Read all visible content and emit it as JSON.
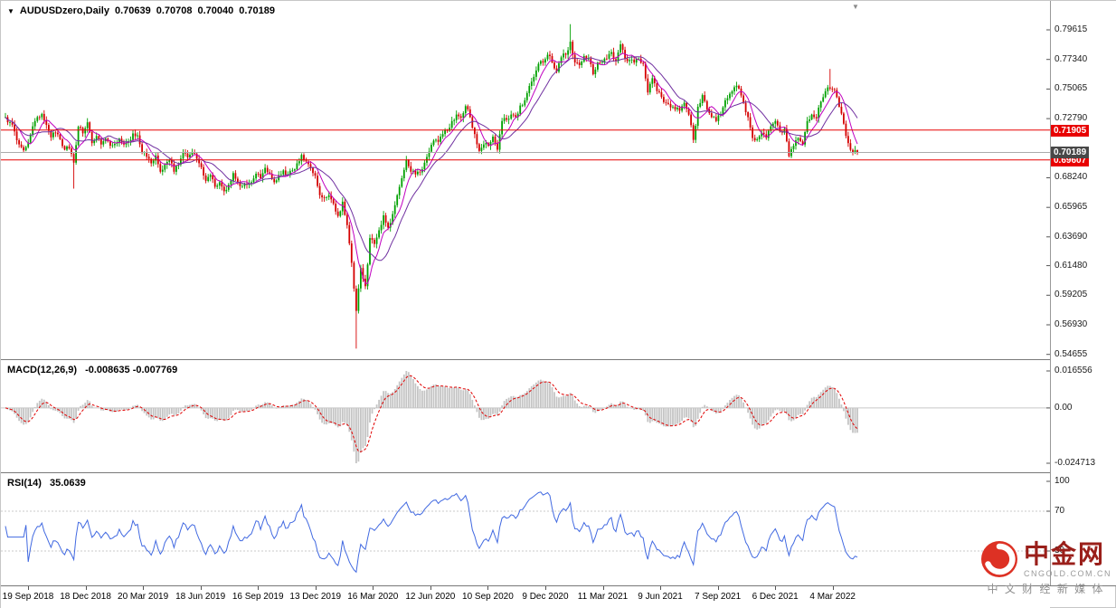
{
  "header": {
    "dropdown_icon": "▼",
    "symbol_title": "AUDUSDzero,Daily",
    "open": "0.70639",
    "high": "0.70708",
    "low": "0.70040",
    "close": "0.70189"
  },
  "colors": {
    "bull": "#00A000",
    "bear": "#D40000",
    "ma_fast": "#C000C0",
    "ma_slow": "#7030A0",
    "hline": "#E80000",
    "badge_red": "#E80000",
    "badge_dark": "#484848",
    "current_price_line": "#ABABAB",
    "macd_histogram": "#C4C4C4",
    "macd_signal": "#E00000",
    "rsi_line": "#4169E1",
    "rsi_level_line": "#C8C8C8",
    "brand_red": "#DD3124",
    "brand_text": "#9A1F1A"
  },
  "main_chart": {
    "end_marker_icon": "▼"
  },
  "chart_data": {
    "type": "candlestick",
    "symbol": "AUDUSDzero",
    "timeframe": "Daily",
    "y_axis": {
      "min": 0.54655,
      "max": 0.79615,
      "labels": [
        "0.79615",
        "0.77340",
        "0.75065",
        "0.72790",
        "0.68240",
        "0.65965",
        "0.63690",
        "0.61480",
        "0.59205",
        "0.56930",
        "0.54655"
      ]
    },
    "x_axis_dates": [
      "19 Sep 2018",
      "18 Dec 2018",
      "20 Mar 2019",
      "18 Jun 2019",
      "16 Sep 2019",
      "13 Dec 2019",
      "16 Mar 2020",
      "12 Jun 2020",
      "10 Sep 2020",
      "9 Dec 2020",
      "11 Mar 2021",
      "9 Jun 2021",
      "7 Sep 2021",
      "6 Dec 2021",
      "4 Mar 2022"
    ],
    "weekly_closes": [
      0.729,
      0.725,
      0.718,
      0.708,
      0.7035,
      0.7095,
      0.722,
      0.729,
      0.7315,
      0.723,
      0.7135,
      0.717,
      0.712,
      0.704,
      0.705,
      0.694,
      0.7215,
      0.7165,
      0.725,
      0.709,
      0.7145,
      0.708,
      0.7125,
      0.707,
      0.7085,
      0.7125,
      0.708,
      0.7105,
      0.7165,
      0.715,
      0.702,
      0.6985,
      0.6935,
      0.6995,
      0.687,
      0.6925,
      0.696,
      0.687,
      0.6925,
      0.702,
      0.698,
      0.7015,
      0.697,
      0.6905,
      0.68,
      0.6845,
      0.6755,
      0.679,
      0.672,
      0.677,
      0.686,
      0.679,
      0.676,
      0.677,
      0.679,
      0.6855,
      0.682,
      0.69,
      0.6855,
      0.679,
      0.6845,
      0.688,
      0.685,
      0.688,
      0.6935,
      0.7,
      0.695,
      0.69,
      0.684,
      0.669,
      0.667,
      0.669,
      0.6625,
      0.653,
      0.664,
      0.646,
      0.617,
      0.58,
      0.613,
      0.599,
      0.636,
      0.6315,
      0.642,
      0.6535,
      0.644,
      0.6545,
      0.669,
      0.682,
      0.696,
      0.687,
      0.685,
      0.6865,
      0.694,
      0.7025,
      0.711,
      0.71,
      0.716,
      0.7185,
      0.726,
      0.731,
      0.7285,
      0.7375,
      0.729,
      0.716,
      0.703,
      0.708,
      0.707,
      0.714,
      0.704,
      0.726,
      0.727,
      0.731,
      0.729,
      0.738,
      0.742,
      0.753,
      0.76,
      0.77,
      0.771,
      0.777,
      0.771,
      0.764,
      0.775,
      0.777,
      0.787,
      0.771,
      0.769,
      0.776,
      0.774,
      0.762,
      0.771,
      0.7715,
      0.774,
      0.779,
      0.772,
      0.785,
      0.774,
      0.773,
      0.771,
      0.774,
      0.77,
      0.748,
      0.759,
      0.749,
      0.7445,
      0.74,
      0.7365,
      0.735,
      0.734,
      0.74,
      0.731,
      0.7115,
      0.737,
      0.746,
      0.735,
      0.729,
      0.726,
      0.731,
      0.742,
      0.747,
      0.752,
      0.751,
      0.74,
      0.729,
      0.713,
      0.712,
      0.717,
      0.713,
      0.722,
      0.726,
      0.718,
      0.72,
      0.699,
      0.707,
      0.713,
      0.708,
      0.726,
      0.731,
      0.728,
      0.741,
      0.749,
      0.751,
      0.75,
      0.737,
      0.724,
      0.709,
      0.702,
      0.70189
    ],
    "spikes": [
      {
        "week": 15,
        "low": 0.674
      },
      {
        "week": 77,
        "low": 0.551
      },
      {
        "week": 124,
        "high": 0.8005
      },
      {
        "week": 181,
        "high": 0.7661
      }
    ],
    "hlines": [
      0.71905,
      0.69607
    ],
    "current_price": 0.70189,
    "ohlc_current": {
      "open": 0.70639,
      "high": 0.70708,
      "low": 0.7004,
      "close": 0.70189
    },
    "indicators": {
      "macd": {
        "label": "MACD(12,26,9)",
        "values_text": "-0.008635 -0.007769",
        "current_values": [
          -0.008635,
          -0.007769
        ],
        "axis_labels": [
          "0.016556",
          "0.00",
          "-0.024713"
        ],
        "axis_max": 0.016556,
        "axis_min": -0.024713
      },
      "rsi": {
        "label": "RSI(14)",
        "value_text": "35.0639",
        "current_value": 35.0639,
        "levels": [
          70,
          30
        ],
        "axis_labels": [
          "100",
          "70",
          "30"
        ]
      }
    }
  },
  "watermark": {
    "brand": "中金网",
    "domain": "CNGOLD.COM.CN",
    "tagline": "中 文 财 经 新 媒 体"
  }
}
